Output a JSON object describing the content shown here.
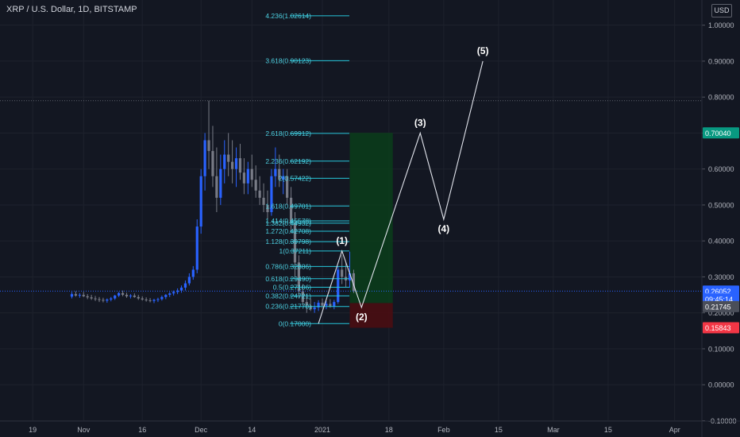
{
  "header": {
    "title": "XRP / U.S. Dollar, 1D, BITSTAMP",
    "currency_label": "USD"
  },
  "colors": {
    "background": "#131722",
    "grid": "#1e222d",
    "up_candle": "#2962ff",
    "down_candle": "#787b86",
    "fib_line": "#26c6da",
    "fib_text": "#4dd0e1",
    "wave": "#e0e3eb",
    "profit_zone": "#0b3d1a",
    "loss_zone": "#4a0d12",
    "tick_text": "#b2b5be",
    "price_tag_blue": "#2962ff",
    "price_tag_green": "#089981",
    "price_tag_red": "#f23645",
    "price_tag_gray": "#4a4e59"
  },
  "chart_data": {
    "type": "candlestick",
    "title": "XRP / U.S. Dollar, 1D, BITSTAMP",
    "y_axis": {
      "side": "right",
      "range": [
        -0.11,
        1.07
      ],
      "ticks": [
        1.0,
        0.9,
        0.8,
        0.7,
        0.6,
        0.5,
        0.4,
        0.3,
        0.2,
        0.1,
        0.0,
        -0.1
      ],
      "tick_labels": [
        "1.00000",
        "0.90000",
        "0.80000",
        "0.70000",
        "0.60000",
        "0.50000",
        "0.40000",
        "0.30000",
        "0.20000",
        "0.10000",
        "0.00000",
        "-0.10000"
      ]
    },
    "x_axis": {
      "ticks": [
        {
          "label": "19",
          "date": "2020-10-19"
        },
        {
          "label": "Nov",
          "date": "2020-11-01"
        },
        {
          "label": "16",
          "date": "2020-11-16"
        },
        {
          "label": "Dec",
          "date": "2020-12-01"
        },
        {
          "label": "14",
          "date": "2020-12-14"
        },
        {
          "label": "2021",
          "date": "2021-01-01"
        },
        {
          "label": "18",
          "date": "2021-01-18"
        },
        {
          "label": "Feb",
          "date": "2021-02-01"
        },
        {
          "label": "15",
          "date": "2021-02-15"
        },
        {
          "label": "Mar",
          "date": "2021-03-01"
        },
        {
          "label": "15",
          "date": "2021-03-15"
        },
        {
          "label": "Apr",
          "date": "2021-04-01"
        }
      ]
    },
    "candles": [
      [
        0.245,
        0.258,
        0.24,
        0.252
      ],
      [
        0.252,
        0.26,
        0.245,
        0.248
      ],
      [
        0.248,
        0.255,
        0.242,
        0.25
      ],
      [
        0.25,
        0.258,
        0.244,
        0.246
      ],
      [
        0.246,
        0.252,
        0.238,
        0.243
      ],
      [
        0.243,
        0.25,
        0.236,
        0.24
      ],
      [
        0.24,
        0.247,
        0.233,
        0.238
      ],
      [
        0.238,
        0.244,
        0.23,
        0.236
      ],
      [
        0.236,
        0.242,
        0.229,
        0.234
      ],
      [
        0.234,
        0.24,
        0.228,
        0.237
      ],
      [
        0.237,
        0.244,
        0.232,
        0.24
      ],
      [
        0.24,
        0.25,
        0.236,
        0.248
      ],
      [
        0.248,
        0.258,
        0.244,
        0.255
      ],
      [
        0.255,
        0.262,
        0.246,
        0.25
      ],
      [
        0.25,
        0.256,
        0.242,
        0.246
      ],
      [
        0.246,
        0.252,
        0.24,
        0.248
      ],
      [
        0.248,
        0.254,
        0.242,
        0.244
      ],
      [
        0.244,
        0.25,
        0.236,
        0.24
      ],
      [
        0.24,
        0.246,
        0.234,
        0.237
      ],
      [
        0.237,
        0.243,
        0.231,
        0.235
      ],
      [
        0.235,
        0.241,
        0.229,
        0.233
      ],
      [
        0.233,
        0.239,
        0.227,
        0.236
      ],
      [
        0.236,
        0.242,
        0.23,
        0.238
      ],
      [
        0.238,
        0.248,
        0.234,
        0.244
      ],
      [
        0.244,
        0.252,
        0.238,
        0.25
      ],
      [
        0.25,
        0.258,
        0.244,
        0.254
      ],
      [
        0.254,
        0.262,
        0.248,
        0.258
      ],
      [
        0.258,
        0.268,
        0.252,
        0.262
      ],
      [
        0.262,
        0.276,
        0.256,
        0.27
      ],
      [
        0.27,
        0.29,
        0.262,
        0.282
      ],
      [
        0.282,
        0.31,
        0.276,
        0.3
      ],
      [
        0.3,
        0.33,
        0.292,
        0.32
      ],
      [
        0.32,
        0.46,
        0.31,
        0.44
      ],
      [
        0.44,
        0.6,
        0.42,
        0.58
      ],
      [
        0.58,
        0.7,
        0.54,
        0.68
      ],
      [
        0.68,
        0.79,
        0.6,
        0.65
      ],
      [
        0.65,
        0.72,
        0.55,
        0.58
      ],
      [
        0.58,
        0.66,
        0.48,
        0.52
      ],
      [
        0.52,
        0.64,
        0.5,
        0.6
      ],
      [
        0.6,
        0.68,
        0.56,
        0.64
      ],
      [
        0.64,
        0.7,
        0.58,
        0.62
      ],
      [
        0.62,
        0.68,
        0.56,
        0.6
      ],
      [
        0.6,
        0.66,
        0.55,
        0.63
      ],
      [
        0.63,
        0.67,
        0.57,
        0.59
      ],
      [
        0.59,
        0.63,
        0.53,
        0.56
      ],
      [
        0.56,
        0.62,
        0.53,
        0.6
      ],
      [
        0.6,
        0.64,
        0.55,
        0.57
      ],
      [
        0.57,
        0.61,
        0.52,
        0.54
      ],
      [
        0.54,
        0.58,
        0.5,
        0.52
      ],
      [
        0.52,
        0.56,
        0.48,
        0.5
      ],
      [
        0.5,
        0.54,
        0.46,
        0.48
      ],
      [
        0.48,
        0.6,
        0.47,
        0.58
      ],
      [
        0.58,
        0.66,
        0.55,
        0.6
      ],
      [
        0.6,
        0.64,
        0.55,
        0.57
      ],
      [
        0.57,
        0.6,
        0.53,
        0.58
      ],
      [
        0.58,
        0.6,
        0.5,
        0.52
      ],
      [
        0.52,
        0.55,
        0.42,
        0.45
      ],
      [
        0.45,
        0.48,
        0.3,
        0.34
      ],
      [
        0.34,
        0.36,
        0.24,
        0.26
      ],
      [
        0.26,
        0.28,
        0.22,
        0.23
      ],
      [
        0.23,
        0.25,
        0.2,
        0.22
      ],
      [
        0.22,
        0.24,
        0.205,
        0.21
      ],
      [
        0.21,
        0.23,
        0.2,
        0.215
      ],
      [
        0.215,
        0.235,
        0.205,
        0.228
      ],
      [
        0.228,
        0.24,
        0.212,
        0.22
      ],
      [
        0.22,
        0.232,
        0.21,
        0.225
      ],
      [
        0.225,
        0.238,
        0.214,
        0.218
      ],
      [
        0.218,
        0.236,
        0.21,
        0.23
      ],
      [
        0.23,
        0.33,
        0.225,
        0.32
      ],
      [
        0.32,
        0.36,
        0.28,
        0.3
      ],
      [
        0.3,
        0.34,
        0.27,
        0.29
      ],
      [
        0.29,
        0.37,
        0.27,
        0.31
      ],
      [
        0.31,
        0.32,
        0.255,
        0.2605
      ]
    ],
    "last_price": 0.26052,
    "fibonacci": [
      {
        "label": "0(0.17000)",
        "value": 0.17
      },
      {
        "label": "0.236(0.21770)",
        "value": 0.2177
      },
      {
        "label": "0.382(0.24721)",
        "value": 0.24721
      },
      {
        "label": "0.5(0.27106)",
        "value": 0.27106
      },
      {
        "label": "0.618(0.29490)",
        "value": 0.2949
      },
      {
        "label": "0.786(0.32886)",
        "value": 0.32886
      },
      {
        "label": "1(0.37211)",
        "value": 0.37211
      },
      {
        "label": "1.128(0.39798)",
        "value": 0.39798
      },
      {
        "label": "1.272(0.42708)",
        "value": 0.42708
      },
      {
        "label": "1.382(0.44932)",
        "value": 0.44932
      },
      {
        "label": "1.414(0.45578)",
        "value": 0.45578
      },
      {
        "label": "1.618(0.49701)",
        "value": 0.49701
      },
      {
        "label": "2(0.57422)",
        "value": 0.57422
      },
      {
        "label": "2.236(0.62192)",
        "value": 0.62192
      },
      {
        "label": "2.618(0.69912)",
        "value": 0.69912
      },
      {
        "label": "3.618(0.90123)",
        "value": 0.90123
      },
      {
        "label": "4.236(1.02614)",
        "value": 1.02614
      }
    ],
    "waves": [
      {
        "label": "",
        "date": "2020-12-31",
        "value": 0.17
      },
      {
        "label": "(1)",
        "date": "2021-01-06",
        "value": 0.372
      },
      {
        "label": "(2)",
        "date": "2021-01-11",
        "value": 0.215
      },
      {
        "label": "(3)",
        "date": "2021-01-26",
        "value": 0.7
      },
      {
        "label": "(4)",
        "date": "2021-02-01",
        "value": 0.46
      },
      {
        "label": "(5)",
        "date": "2021-02-11",
        "value": 0.9
      }
    ],
    "position": {
      "start_date": "2021-01-08",
      "end_date": "2021-01-19",
      "entry": 0.2271,
      "target": 0.7004,
      "stop": 0.15843
    },
    "price_tags": [
      {
        "value": 0.7004,
        "label": "0.70040",
        "color": "#089981"
      },
      {
        "value": 0.26052,
        "label": "0.26052",
        "color": "#2962ff"
      },
      {
        "value": 0.2385,
        "label": "09:45:14",
        "color": "#2962ff"
      },
      {
        "value": 0.21745,
        "label": "0.21745",
        "color": "#4a4e59"
      },
      {
        "value": 0.15843,
        "label": "0.15843",
        "color": "#f23645"
      }
    ],
    "grid": true,
    "dotted_reference": 0.79
  }
}
